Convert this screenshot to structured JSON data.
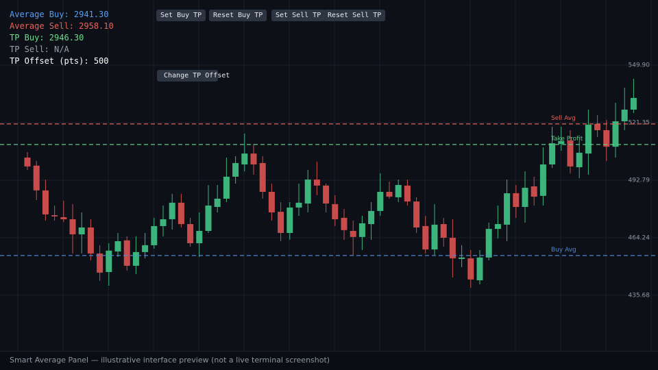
{
  "panel": {
    "stats": [
      {
        "text": "Average Buy: 2941.30",
        "color": "#5b9cf0"
      },
      {
        "text": "Average Sell: 2958.10",
        "color": "#e8625d"
      },
      {
        "text": "TP Buy: 2946.30",
        "color": "#6fdc8c"
      },
      {
        "text": "TP Sell: N/A",
        "color": "#9aa1ab"
      },
      {
        "text": "TP Offset (pts): 500",
        "color": "#ffffff"
      }
    ],
    "buttons": [
      "Set Buy TP",
      "Reset Buy TP",
      "Set Sell TP",
      "Reset Sell TP"
    ],
    "offset_button": "Change TP Offset",
    "footer": "Smart Average Panel — illustrative interface preview (not a live terminal screenshot)"
  },
  "chart_data": {
    "type": "candlestick",
    "up_color": "#3db47c",
    "down_color": "#c94c4c",
    "open": [
      504.0,
      500.0,
      487.7,
      475.4,
      474.4,
      473.4,
      465.9,
      469.3,
      456.4,
      447.2,
      457.4,
      462.9,
      450.3,
      457.1,
      460.5,
      470.0,
      473.4,
      481.6,
      471.0,
      461.5,
      467.6,
      479.5,
      483.6,
      494.5,
      500.6,
      506.0,
      501.3,
      487.0,
      477.1,
      466.6,
      479.2,
      481.2,
      493.1,
      490.1,
      480.9,
      474.1,
      467.6,
      464.6,
      471.0,
      477.5,
      487.0,
      484.3,
      490.1,
      482.2,
      470.0,
      458.4,
      471.0,
      464.2,
      453.7,
      454.0,
      443.1,
      454.4,
      468.6,
      470.7,
      486.3,
      479.5,
      489.7,
      485.0,
      500.6,
      510.8,
      512.5,
      499.2,
      506.0,
      520.7,
      517.6,
      509.4,
      522.0,
      527.8
    ],
    "high": [
      506.7,
      502.3,
      493.1,
      480.2,
      482.6,
      480.9,
      476.8,
      473.4,
      460.5,
      461.5,
      466.6,
      464.9,
      464.9,
      466.6,
      474.1,
      480.2,
      486.0,
      486.0,
      474.1,
      476.8,
      490.4,
      490.4,
      504.0,
      504.7,
      515.9,
      510.8,
      504.7,
      491.1,
      481.9,
      481.9,
      491.1,
      497.9,
      502.0,
      491.1,
      485.3,
      478.5,
      472.7,
      475.1,
      481.9,
      496.2,
      492.1,
      493.1,
      493.1,
      484.3,
      475.1,
      480.9,
      474.1,
      473.4,
      460.5,
      458.1,
      458.1,
      471.7,
      480.2,
      493.1,
      490.4,
      497.2,
      494.5,
      509.1,
      519.3,
      519.3,
      517.6,
      512.5,
      527.8,
      525.1,
      522.7,
      531.2,
      538.7,
      543.1
    ],
    "low": [
      497.9,
      482.9,
      472.7,
      472.7,
      472.0,
      456.4,
      456.4,
      453.0,
      442.8,
      440.4,
      454.7,
      447.9,
      446.2,
      454.0,
      458.8,
      464.9,
      468.3,
      469.3,
      459.8,
      454.7,
      466.6,
      476.8,
      481.9,
      491.1,
      497.2,
      495.5,
      483.6,
      472.7,
      462.5,
      463.2,
      475.1,
      476.8,
      485.3,
      476.8,
      470.0,
      463.2,
      455.4,
      458.1,
      463.2,
      475.1,
      483.6,
      481.9,
      480.2,
      466.6,
      456.4,
      455.7,
      459.8,
      444.5,
      449.6,
      439.4,
      441.1,
      453.0,
      463.9,
      462.5,
      474.1,
      471.7,
      480.2,
      480.2,
      498.9,
      507.4,
      496.2,
      493.8,
      495.5,
      514.2,
      502.3,
      504.0,
      517.6,
      526.1
    ],
    "close": [
      499.6,
      487.7,
      475.8,
      474.8,
      473.4,
      465.9,
      469.3,
      456.4,
      446.9,
      457.8,
      462.5,
      450.3,
      457.1,
      460.5,
      470.0,
      473.4,
      481.6,
      471.0,
      461.5,
      467.6,
      480.2,
      483.6,
      494.5,
      501.3,
      506.0,
      500.6,
      487.0,
      476.8,
      466.6,
      479.2,
      481.6,
      493.1,
      490.1,
      481.2,
      473.4,
      468.0,
      464.6,
      471.4,
      477.5,
      487.0,
      484.6,
      490.4,
      482.2,
      469.3,
      458.4,
      470.7,
      464.2,
      454.0,
      454.4,
      443.5,
      454.4,
      468.6,
      471.0,
      486.3,
      479.5,
      489.0,
      484.6,
      500.6,
      511.1,
      512.2,
      499.6,
      506.4,
      520.3,
      517.6,
      509.4,
      522.0,
      527.8,
      533.6
    ],
    "ylim": [
      408.1,
      582.2
    ],
    "yticks": [
      {
        "value": 549.9,
        "label": "549.90"
      },
      {
        "value": 521.35,
        "label": "521.35"
      },
      {
        "value": 492.79,
        "label": "492.79"
      },
      {
        "value": 464.24,
        "label": "464.24"
      },
      {
        "value": 435.68,
        "label": "435.68"
      }
    ],
    "grid": true,
    "lines": [
      {
        "label": "Sell Avg",
        "value": 520.7,
        "color": "#e0605a"
      },
      {
        "label": "Take Profit",
        "value": 510.5,
        "color": "#5fc98a"
      },
      {
        "label": "Buy Avg",
        "value": 455.4,
        "color": "#4f86d6"
      }
    ]
  }
}
